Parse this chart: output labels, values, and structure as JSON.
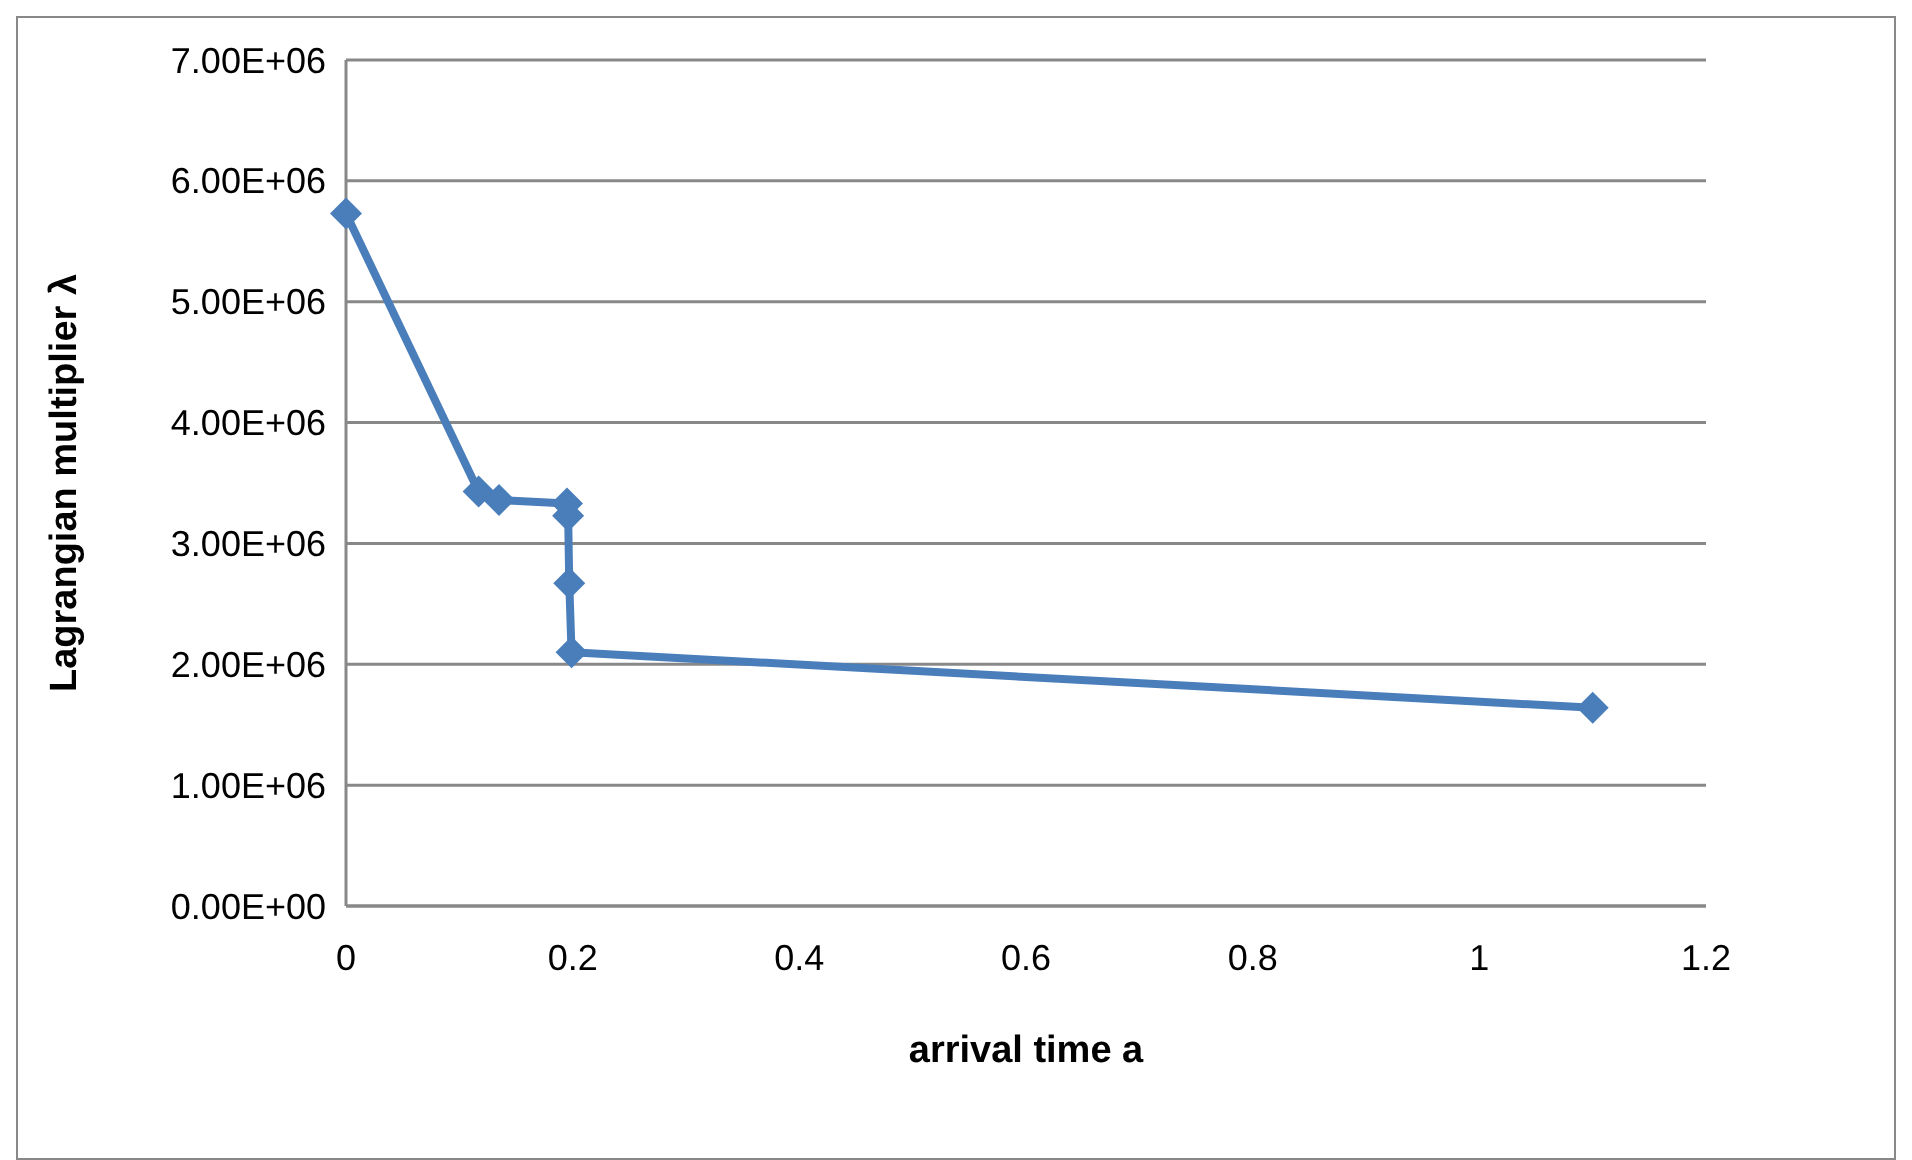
{
  "chart_data": {
    "type": "line",
    "xlabel": "arrival time a",
    "ylabel": "Lagrangian multiplier λ",
    "x": [
      0,
      0.117,
      0.135,
      0.195,
      0.196,
      0.197,
      0.199,
      1.1
    ],
    "series": [
      {
        "color": "#4a7ebb",
        "values": [
          5730000,
          3430000,
          3360000,
          3330000,
          3230000,
          2670000,
          2100000,
          1640000
        ]
      }
    ],
    "xlim": [
      0,
      1.2
    ],
    "xticks": [
      0,
      0.2,
      0.4,
      0.6,
      0.8,
      1,
      1.2
    ],
    "ylim": [
      0,
      7000000
    ],
    "yticks": [
      {
        "value": 0,
        "label": "0.00E+00"
      },
      {
        "value": 1000000,
        "label": "1.00E+06"
      },
      {
        "value": 2000000,
        "label": "2.00E+06"
      },
      {
        "value": 3000000,
        "label": "3.00E+06"
      },
      {
        "value": 4000000,
        "label": "4.00E+06"
      },
      {
        "value": 5000000,
        "label": "5.00E+06"
      },
      {
        "value": 6000000,
        "label": "6.00E+06"
      },
      {
        "value": 7000000,
        "label": "7.00E+06"
      }
    ],
    "grid": "y",
    "marker": "diamond"
  }
}
